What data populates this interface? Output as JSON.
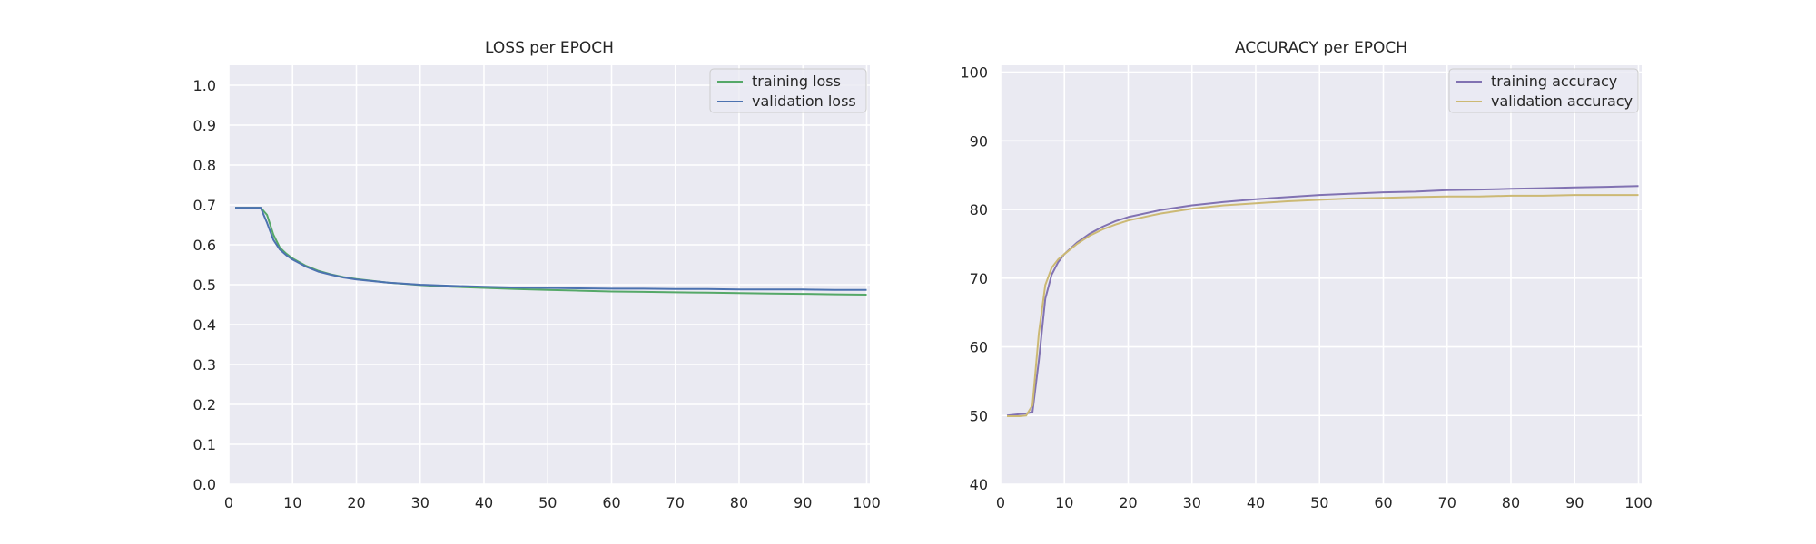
{
  "chart_data": [
    {
      "type": "line",
      "title": "LOSS per EPOCH",
      "xlabel": "",
      "ylabel": "",
      "xlim": [
        0,
        100.5
      ],
      "ylim": [
        0,
        1.05
      ],
      "xticks": [
        0,
        10,
        20,
        30,
        40,
        50,
        60,
        70,
        80,
        90,
        100
      ],
      "yticks": [
        0.0,
        0.1,
        0.2,
        0.3,
        0.4,
        0.5,
        0.6,
        0.7,
        0.8,
        0.9,
        1.0
      ],
      "ytick_labels": [
        "0.0",
        "0.1",
        "0.2",
        "0.3",
        "0.4",
        "0.5",
        "0.6",
        "0.7",
        "0.8",
        "0.9",
        "1.0"
      ],
      "grid": true,
      "legend_position": "top-right",
      "series": [
        {
          "name": "training loss",
          "color": "#55a868",
          "x": [
            1,
            2,
            3,
            4,
            5,
            6,
            7,
            8,
            9,
            10,
            12,
            14,
            16,
            18,
            20,
            25,
            30,
            35,
            40,
            45,
            50,
            55,
            60,
            65,
            70,
            75,
            80,
            85,
            90,
            95,
            100
          ],
          "y": [
            0.693,
            0.693,
            0.693,
            0.693,
            0.693,
            0.675,
            0.625,
            0.593,
            0.578,
            0.566,
            0.548,
            0.535,
            0.526,
            0.519,
            0.514,
            0.505,
            0.499,
            0.495,
            0.492,
            0.489,
            0.487,
            0.485,
            0.483,
            0.482,
            0.481,
            0.48,
            0.479,
            0.478,
            0.477,
            0.476,
            0.475
          ]
        },
        {
          "name": "validation loss",
          "color": "#4c72b0",
          "x": [
            1,
            2,
            3,
            4,
            5,
            6,
            7,
            8,
            9,
            10,
            12,
            14,
            16,
            18,
            20,
            25,
            30,
            35,
            40,
            45,
            50,
            55,
            60,
            65,
            70,
            75,
            80,
            85,
            90,
            95,
            100
          ],
          "y": [
            0.693,
            0.693,
            0.693,
            0.693,
            0.693,
            0.655,
            0.612,
            0.588,
            0.574,
            0.563,
            0.546,
            0.533,
            0.525,
            0.518,
            0.513,
            0.505,
            0.5,
            0.497,
            0.495,
            0.493,
            0.492,
            0.491,
            0.49,
            0.49,
            0.489,
            0.489,
            0.488,
            0.488,
            0.488,
            0.487,
            0.487
          ]
        }
      ]
    },
    {
      "type": "line",
      "title": "ACCURACY per EPOCH",
      "xlabel": "",
      "ylabel": "",
      "xlim": [
        0,
        100.5
      ],
      "ylim": [
        40,
        101
      ],
      "xticks": [
        0,
        10,
        20,
        30,
        40,
        50,
        60,
        70,
        80,
        90,
        100
      ],
      "yticks": [
        40,
        50,
        60,
        70,
        80,
        90,
        100
      ],
      "ytick_labels": [
        "40",
        "50",
        "60",
        "70",
        "80",
        "90",
        "100"
      ],
      "grid": true,
      "legend_position": "top-right",
      "series": [
        {
          "name": "training accuracy",
          "color": "#8172b2",
          "x": [
            1,
            2,
            3,
            4,
            5,
            6,
            7,
            8,
            9,
            10,
            12,
            14,
            16,
            18,
            20,
            25,
            30,
            35,
            40,
            45,
            50,
            55,
            60,
            65,
            70,
            75,
            80,
            85,
            90,
            95,
            100
          ],
          "y": [
            50.0,
            50.1,
            50.2,
            50.3,
            50.5,
            58.0,
            67.0,
            70.5,
            72.3,
            73.5,
            75.2,
            76.5,
            77.5,
            78.3,
            78.9,
            79.9,
            80.6,
            81.1,
            81.5,
            81.8,
            82.1,
            82.3,
            82.5,
            82.6,
            82.8,
            82.9,
            83.0,
            83.1,
            83.2,
            83.3,
            83.4
          ]
        },
        {
          "name": "validation accuracy",
          "color": "#ccb974",
          "x": [
            1,
            2,
            3,
            4,
            5,
            6,
            7,
            8,
            9,
            10,
            12,
            14,
            16,
            18,
            20,
            25,
            30,
            35,
            40,
            45,
            50,
            55,
            60,
            65,
            70,
            75,
            80,
            85,
            90,
            95,
            100
          ],
          "y": [
            49.9,
            49.9,
            49.9,
            50.0,
            51.5,
            62.0,
            69.0,
            71.5,
            72.7,
            73.5,
            75.0,
            76.2,
            77.1,
            77.8,
            78.4,
            79.4,
            80.1,
            80.6,
            80.9,
            81.2,
            81.4,
            81.6,
            81.7,
            81.8,
            81.9,
            81.9,
            82.0,
            82.0,
            82.1,
            82.1,
            82.1
          ]
        }
      ]
    }
  ]
}
